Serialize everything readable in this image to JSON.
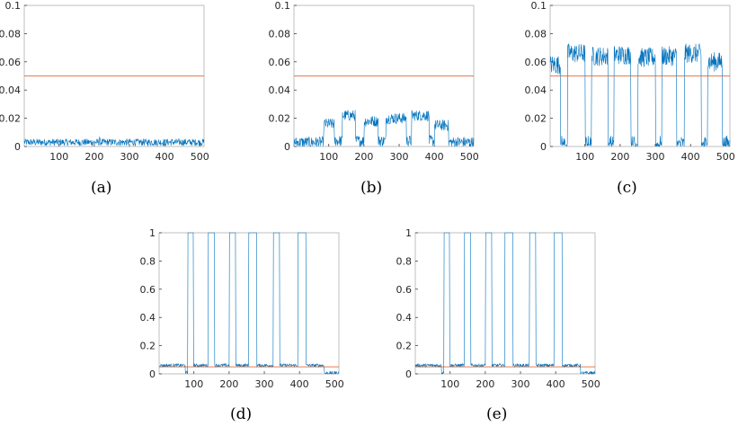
{
  "chart_data": [
    {
      "type": "line",
      "caption": "(a)",
      "xlim": [
        1,
        512
      ],
      "ylim": [
        0,
        0.1
      ],
      "xticks": [
        100,
        200,
        300,
        400,
        500
      ],
      "yticks": [
        0,
        0.02,
        0.04,
        0.06,
        0.08,
        0.1
      ],
      "ytick_labels": [
        "0",
        "0.02",
        "0.04",
        "0.06",
        "0.08",
        "0.1"
      ],
      "threshold": 0.05,
      "grid": false,
      "series_style": "noise-floor",
      "series": [
        {
          "segments": [
            [
              1,
              512,
              0.003
            ]
          ],
          "noise": 0.0025,
          "spike": [
            215,
            0.007
          ]
        }
      ]
    },
    {
      "type": "line",
      "caption": "(b)",
      "xlim": [
        1,
        512
      ],
      "ylim": [
        0,
        0.1
      ],
      "xticks": [
        100,
        200,
        300,
        400,
        500
      ],
      "yticks": [
        0,
        0.02,
        0.04,
        0.06,
        0.08,
        0.1
      ],
      "ytick_labels": [
        "0",
        "0.02",
        "0.04",
        "0.06",
        "0.08",
        "0.1"
      ],
      "threshold": 0.05,
      "grid": false,
      "series": [
        {
          "segments": [
            [
              1,
              85,
              0.003
            ],
            [
              86,
              115,
              0.016
            ],
            [
              116,
              138,
              0.004
            ],
            [
              139,
              175,
              0.022
            ],
            [
              176,
              200,
              0.004
            ],
            [
              201,
              240,
              0.018
            ],
            [
              241,
              262,
              0.004
            ],
            [
              263,
              320,
              0.02
            ],
            [
              321,
              335,
              0.004
            ],
            [
              336,
              385,
              0.022
            ],
            [
              386,
              400,
              0.004
            ],
            [
              401,
              440,
              0.015
            ],
            [
              441,
              512,
              0.003
            ]
          ],
          "noise": 0.004
        }
      ]
    },
    {
      "type": "line",
      "caption": "(c)",
      "xlim": [
        1,
        512
      ],
      "ylim": [
        0,
        0.1
      ],
      "xticks": [
        100,
        200,
        300,
        400,
        500
      ],
      "yticks": [
        0,
        0.02,
        0.04,
        0.06,
        0.08,
        0.1
      ],
      "ytick_labels": [
        "0",
        "0.02",
        "0.04",
        "0.06",
        "0.08",
        "0.1"
      ],
      "threshold": 0.05,
      "grid": false,
      "series": [
        {
          "segments": [
            [
              1,
              30,
              0.058
            ],
            [
              31,
              50,
              0.001
            ],
            [
              51,
              100,
              0.066
            ],
            [
              101,
              118,
              0.001
            ],
            [
              119,
              165,
              0.064
            ],
            [
              166,
              182,
              0.001
            ],
            [
              183,
              230,
              0.065
            ],
            [
              231,
              250,
              0.001
            ],
            [
              251,
              300,
              0.063
            ],
            [
              301,
              318,
              0.001
            ],
            [
              319,
              360,
              0.064
            ],
            [
              361,
              382,
              0.001
            ],
            [
              383,
              430,
              0.066
            ],
            [
              431,
              448,
              0.001
            ],
            [
              449,
              490,
              0.06
            ],
            [
              491,
              512,
              0.001
            ]
          ],
          "noise": 0.007
        }
      ]
    },
    {
      "type": "line",
      "caption": "(d)",
      "xlim": [
        1,
        512
      ],
      "ylim": [
        0,
        1
      ],
      "xticks": [
        100,
        200,
        300,
        400,
        500
      ],
      "yticks": [
        0,
        0.2,
        0.4,
        0.6,
        0.8,
        1
      ],
      "ytick_labels": [
        "0",
        "0.2",
        "0.4",
        "0.6",
        "0.8",
        "1"
      ],
      "threshold": 0.05,
      "grid": false,
      "series": [
        {
          "segments": [
            [
              1,
              75,
              0.06
            ],
            [
              76,
              82,
              0.005
            ],
            [
              83,
              98,
              1
            ],
            [
              99,
              140,
              0.06
            ],
            [
              141,
              158,
              1
            ],
            [
              159,
              200,
              0.06
            ],
            [
              201,
              218,
              1
            ],
            [
              219,
              255,
              0.06
            ],
            [
              256,
              278,
              1
            ],
            [
              279,
              325,
              0.06
            ],
            [
              326,
              343,
              1
            ],
            [
              344,
              395,
              0.06
            ],
            [
              396,
              418,
              1
            ],
            [
              419,
              470,
              0.06
            ],
            [
              471,
              512,
              0.005
            ]
          ],
          "noise": 0.012
        }
      ]
    },
    {
      "type": "line",
      "caption": "(e)",
      "xlim": [
        1,
        512
      ],
      "ylim": [
        0,
        1
      ],
      "xticks": [
        100,
        200,
        300,
        400,
        500
      ],
      "yticks": [
        0,
        0.2,
        0.4,
        0.6,
        0.8,
        1
      ],
      "ytick_labels": [
        "0",
        "0.2",
        "0.4",
        "0.6",
        "0.8",
        "1"
      ],
      "threshold": 0.05,
      "grid": false,
      "series": [
        {
          "segments": [
            [
              1,
              75,
              0.06
            ],
            [
              76,
              82,
              0.005
            ],
            [
              83,
              98,
              1
            ],
            [
              99,
              140,
              0.06
            ],
            [
              141,
              158,
              1
            ],
            [
              159,
              200,
              0.06
            ],
            [
              201,
              218,
              1
            ],
            [
              219,
              255,
              0.06
            ],
            [
              256,
              278,
              1
            ],
            [
              279,
              325,
              0.06
            ],
            [
              326,
              343,
              1
            ],
            [
              344,
              395,
              0.06
            ],
            [
              396,
              418,
              1
            ],
            [
              419,
              470,
              0.06
            ],
            [
              471,
              512,
              0.005
            ]
          ],
          "noise": 0.012
        }
      ]
    }
  ],
  "colors": {
    "series": "#0072BD",
    "threshold": "#D95319",
    "axes": "#262626",
    "box": "#b0b0b0"
  }
}
